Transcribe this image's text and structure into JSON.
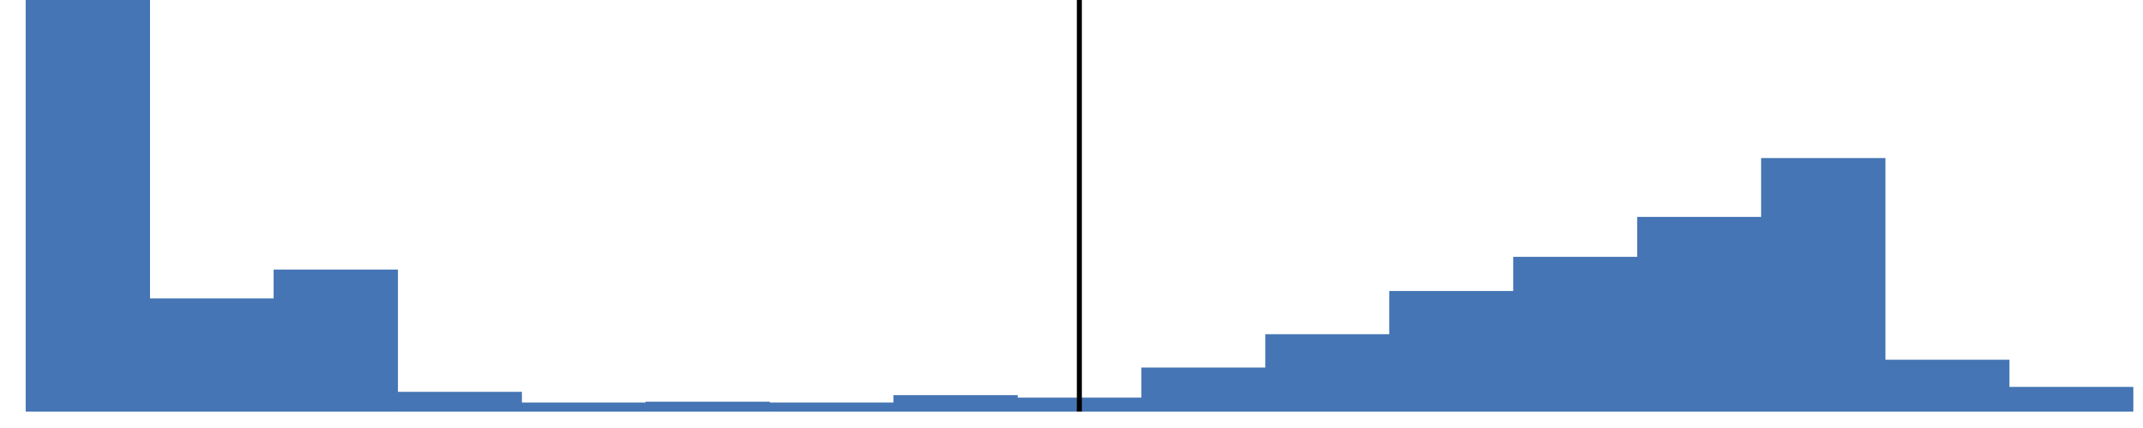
{
  "chart_data": {
    "type": "bar",
    "title": "",
    "xlabel": "",
    "ylabel": "",
    "bins": 17,
    "values": [
      100,
      27.5,
      34.5,
      4.8,
      2.2,
      2.4,
      2.2,
      4.0,
      3.4,
      10.7,
      18.8,
      29.3,
      37.6,
      47.3,
      61.6,
      12.6,
      6.0
    ],
    "ylim": [
      0,
      100
    ],
    "reference_line": {
      "bin_position": 8.5,
      "color": "#000000"
    },
    "colors": {
      "bar": "#4575b4",
      "reference_line": "#000000",
      "background": "#ffffff"
    },
    "grid": false,
    "legend": "none"
  }
}
